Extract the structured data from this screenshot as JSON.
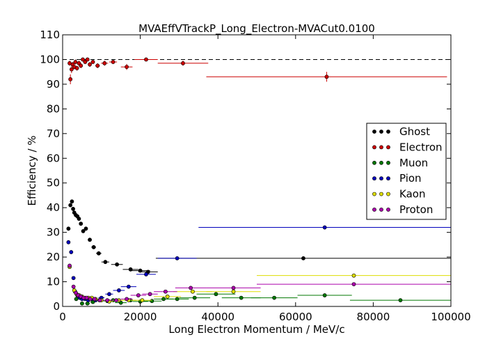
{
  "chart_data": {
    "type": "scatter",
    "title": "MVAEffVTrackP_Long_Electron-MVACut0.0100",
    "xlabel": "Long Electron Momentum / MeV/c",
    "ylabel": "Efficiency / %",
    "xlim": [
      0,
      100000
    ],
    "ylim": [
      0,
      110
    ],
    "xticks": [
      0,
      20000,
      40000,
      60000,
      80000,
      100000
    ],
    "yticks": [
      0,
      10,
      20,
      30,
      40,
      50,
      60,
      70,
      80,
      90,
      100,
      110
    ],
    "grid": false,
    "legend_position": "right",
    "reference_line": 100,
    "series": [
      {
        "name": "Ghost",
        "color": "#000000",
        "points": [
          {
            "x": 1500,
            "y": 31.5,
            "xerr": 500,
            "yerr": 0.8
          },
          {
            "x": 2000,
            "y": 41,
            "xerr": 300,
            "yerr": 0.8
          },
          {
            "x": 2400,
            "y": 42.5,
            "xerr": 200,
            "yerr": 0.8
          },
          {
            "x": 2700,
            "y": 39.5,
            "xerr": 200,
            "yerr": 0.8
          },
          {
            "x": 3000,
            "y": 38,
            "xerr": 200,
            "yerr": 0.8
          },
          {
            "x": 3400,
            "y": 37,
            "xerr": 200,
            "yerr": 0.8
          },
          {
            "x": 3800,
            "y": 36.5,
            "xerr": 200,
            "yerr": 0.8
          },
          {
            "x": 4200,
            "y": 35.5,
            "xerr": 300,
            "yerr": 0.8
          },
          {
            "x": 4700,
            "y": 33.5,
            "xerr": 300,
            "yerr": 0.8
          },
          {
            "x": 5300,
            "y": 30.5,
            "xerr": 300,
            "yerr": 0.8
          },
          {
            "x": 6000,
            "y": 31.5,
            "xerr": 400,
            "yerr": 0.8
          },
          {
            "x": 7000,
            "y": 27,
            "xerr": 500,
            "yerr": 0.8
          },
          {
            "x": 8000,
            "y": 24,
            "xerr": 600,
            "yerr": 0.8
          },
          {
            "x": 9300,
            "y": 21.5,
            "xerr": 700,
            "yerr": 0.8
          },
          {
            "x": 11000,
            "y": 18,
            "xerr": 1000,
            "yerr": 0.8
          },
          {
            "x": 14000,
            "y": 17,
            "xerr": 1500,
            "yerr": 0.8
          },
          {
            "x": 17500,
            "y": 15,
            "xerr": 2000,
            "yerr": 0.8
          },
          {
            "x": 20000,
            "y": 14.5,
            "xerr": 2500,
            "yerr": 0.8
          },
          {
            "x": 22000,
            "y": 14,
            "xerr": 2500,
            "yerr": 0.8
          },
          {
            "x": 62000,
            "y": 19.5,
            "xerr": 38000,
            "yerr": 0.4
          }
        ]
      },
      {
        "name": "Electron",
        "color": "#cc0000",
        "points": [
          {
            "x": 1800,
            "y": 98.5,
            "xerr": 300,
            "yerr": 1.0
          },
          {
            "x": 2000,
            "y": 92,
            "xerr": 200,
            "yerr": 2.0
          },
          {
            "x": 2300,
            "y": 96,
            "xerr": 200,
            "yerr": 1.5
          },
          {
            "x": 2600,
            "y": 98,
            "xerr": 200,
            "yerr": 1.0
          },
          {
            "x": 3000,
            "y": 97,
            "xerr": 200,
            "yerr": 1.0
          },
          {
            "x": 3300,
            "y": 99,
            "xerr": 200,
            "yerr": 1.0
          },
          {
            "x": 3700,
            "y": 96.5,
            "xerr": 200,
            "yerr": 1.0
          },
          {
            "x": 4200,
            "y": 98.5,
            "xerr": 300,
            "yerr": 1.0
          },
          {
            "x": 4700,
            "y": 97.5,
            "xerr": 300,
            "yerr": 1.0
          },
          {
            "x": 5200,
            "y": 100,
            "xerr": 300,
            "yerr": 0.5
          },
          {
            "x": 5800,
            "y": 99,
            "xerr": 300,
            "yerr": 0.8
          },
          {
            "x": 6400,
            "y": 100,
            "xerr": 400,
            "yerr": 0.5
          },
          {
            "x": 7000,
            "y": 98,
            "xerr": 400,
            "yerr": 1.0
          },
          {
            "x": 7800,
            "y": 99,
            "xerr": 500,
            "yerr": 0.8
          },
          {
            "x": 9000,
            "y": 97.5,
            "xerr": 600,
            "yerr": 1.0
          },
          {
            "x": 10800,
            "y": 98.5,
            "xerr": 900,
            "yerr": 1.0
          },
          {
            "x": 13000,
            "y": 99,
            "xerr": 1000,
            "yerr": 0.8
          },
          {
            "x": 16500,
            "y": 97,
            "xerr": 1500,
            "yerr": 1.2
          },
          {
            "x": 21500,
            "y": 100,
            "xerr": 3000,
            "yerr": 0.5
          },
          {
            "x": 31000,
            "y": 98.5,
            "xerr": 6500,
            "yerr": 1.0
          },
          {
            "x": 68000,
            "y": 93,
            "xerr": 31000,
            "yerr": 2.0
          }
        ]
      },
      {
        "name": "Muon",
        "color": "#007700",
        "points": [
          {
            "x": 3500,
            "y": 3,
            "xerr": 300,
            "yerr": 0.5
          },
          {
            "x": 5000,
            "y": 1.2,
            "xerr": 500,
            "yerr": 0.4
          },
          {
            "x": 6400,
            "y": 1.2,
            "xerr": 600,
            "yerr": 0.4
          },
          {
            "x": 7800,
            "y": 1.8,
            "xerr": 700,
            "yerr": 0.4
          },
          {
            "x": 9500,
            "y": 2.5,
            "xerr": 900,
            "yerr": 0.5
          },
          {
            "x": 11500,
            "y": 2.2,
            "xerr": 1000,
            "yerr": 0.5
          },
          {
            "x": 13000,
            "y": 2.5,
            "xerr": 1000,
            "yerr": 0.5
          },
          {
            "x": 15000,
            "y": 1.5,
            "xerr": 1500,
            "yerr": 0.5
          },
          {
            "x": 17500,
            "y": 2.5,
            "xerr": 1500,
            "yerr": 0.5
          },
          {
            "x": 20000,
            "y": 2,
            "xerr": 2000,
            "yerr": 0.5
          },
          {
            "x": 23000,
            "y": 2.2,
            "xerr": 2500,
            "yerr": 0.5
          },
          {
            "x": 26000,
            "y": 3,
            "xerr": 2500,
            "yerr": 0.5
          },
          {
            "x": 29500,
            "y": 3,
            "xerr": 3000,
            "yerr": 0.5
          },
          {
            "x": 34000,
            "y": 3.5,
            "xerr": 4000,
            "yerr": 0.5
          },
          {
            "x": 39500,
            "y": 5,
            "xerr": 5000,
            "yerr": 0.5
          },
          {
            "x": 46000,
            "y": 3.5,
            "xerr": 5000,
            "yerr": 0.5
          },
          {
            "x": 54500,
            "y": 3.5,
            "xerr": 6000,
            "yerr": 0.5
          },
          {
            "x": 67500,
            "y": 4.5,
            "xerr": 7000,
            "yerr": 0.5
          },
          {
            "x": 87000,
            "y": 2.5,
            "xerr": 13000,
            "yerr": 0.5
          }
        ]
      },
      {
        "name": "Pion",
        "color": "#0000bb",
        "points": [
          {
            "x": 1500,
            "y": 26,
            "xerr": 300,
            "yerr": 0.8
          },
          {
            "x": 2200,
            "y": 22,
            "xerr": 300,
            "yerr": 0.8
          },
          {
            "x": 2800,
            "y": 11.5,
            "xerr": 300,
            "yerr": 0.6
          },
          {
            "x": 3200,
            "y": 6,
            "xerr": 300,
            "yerr": 0.5
          },
          {
            "x": 3800,
            "y": 4.5,
            "xerr": 300,
            "yerr": 0.5
          },
          {
            "x": 4400,
            "y": 3.5,
            "xerr": 300,
            "yerr": 0.5
          },
          {
            "x": 5000,
            "y": 3,
            "xerr": 400,
            "yerr": 0.4
          },
          {
            "x": 5800,
            "y": 3,
            "xerr": 400,
            "yerr": 0.4
          },
          {
            "x": 6600,
            "y": 2.5,
            "xerr": 500,
            "yerr": 0.4
          },
          {
            "x": 7500,
            "y": 3,
            "xerr": 500,
            "yerr": 0.4
          },
          {
            "x": 8500,
            "y": 2.5,
            "xerr": 600,
            "yerr": 0.4
          },
          {
            "x": 10000,
            "y": 3.5,
            "xerr": 800,
            "yerr": 0.5
          },
          {
            "x": 12000,
            "y": 5,
            "xerr": 1000,
            "yerr": 0.6
          },
          {
            "x": 14500,
            "y": 6.5,
            "xerr": 1500,
            "yerr": 0.6
          },
          {
            "x": 17000,
            "y": 8,
            "xerr": 2000,
            "yerr": 0.6
          },
          {
            "x": 21500,
            "y": 13,
            "xerr": 2500,
            "yerr": 0.8
          },
          {
            "x": 29500,
            "y": 19.5,
            "xerr": 5000,
            "yerr": 0.6
          },
          {
            "x": 67500,
            "y": 32,
            "xerr": 32500,
            "yerr": 0.5
          }
        ]
      },
      {
        "name": "Kaon",
        "color": "#dddd00",
        "points": [
          {
            "x": 1800,
            "y": 16,
            "xerr": 300,
            "yerr": 0.8
          },
          {
            "x": 3000,
            "y": 6.5,
            "xerr": 300,
            "yerr": 0.6
          },
          {
            "x": 3600,
            "y": 5,
            "xerr": 300,
            "yerr": 0.5
          },
          {
            "x": 4300,
            "y": 4.5,
            "xerr": 300,
            "yerr": 0.5
          },
          {
            "x": 5000,
            "y": 4,
            "xerr": 400,
            "yerr": 0.4
          },
          {
            "x": 5800,
            "y": 3.5,
            "xerr": 400,
            "yerr": 0.4
          },
          {
            "x": 6600,
            "y": 3.5,
            "xerr": 500,
            "yerr": 0.4
          },
          {
            "x": 7500,
            "y": 3.5,
            "xerr": 500,
            "yerr": 0.4
          },
          {
            "x": 8500,
            "y": 3,
            "xerr": 600,
            "yerr": 0.4
          },
          {
            "x": 10000,
            "y": 2.5,
            "xerr": 800,
            "yerr": 0.4
          },
          {
            "x": 12000,
            "y": 2,
            "xerr": 1000,
            "yerr": 0.4
          },
          {
            "x": 14500,
            "y": 2.5,
            "xerr": 1500,
            "yerr": 0.4
          },
          {
            "x": 17000,
            "y": 2.5,
            "xerr": 2000,
            "yerr": 0.4
          },
          {
            "x": 20500,
            "y": 2.5,
            "xerr": 2500,
            "yerr": 0.4
          },
          {
            "x": 27000,
            "y": 4,
            "xerr": 3500,
            "yerr": 0.4
          },
          {
            "x": 33500,
            "y": 6,
            "xerr": 5000,
            "yerr": 0.4
          },
          {
            "x": 44000,
            "y": 6,
            "xerr": 7000,
            "yerr": 0.4
          },
          {
            "x": 75000,
            "y": 12.5,
            "xerr": 25000,
            "yerr": 0.4
          }
        ]
      },
      {
        "name": "Proton",
        "color": "#aa00aa",
        "points": [
          {
            "x": 1800,
            "y": 16.5,
            "xerr": 300,
            "yerr": 0.8
          },
          {
            "x": 2800,
            "y": 8,
            "xerr": 300,
            "yerr": 0.6
          },
          {
            "x": 3400,
            "y": 5.5,
            "xerr": 300,
            "yerr": 0.5
          },
          {
            "x": 4000,
            "y": 4.5,
            "xerr": 300,
            "yerr": 0.5
          },
          {
            "x": 4700,
            "y": 4,
            "xerr": 300,
            "yerr": 0.4
          },
          {
            "x": 5400,
            "y": 3.5,
            "xerr": 400,
            "yerr": 0.4
          },
          {
            "x": 6200,
            "y": 3.5,
            "xerr": 400,
            "yerr": 0.4
          },
          {
            "x": 7100,
            "y": 3,
            "xerr": 500,
            "yerr": 0.4
          },
          {
            "x": 8200,
            "y": 3,
            "xerr": 600,
            "yerr": 0.4
          },
          {
            "x": 9600,
            "y": 2.5,
            "xerr": 700,
            "yerr": 0.4
          },
          {
            "x": 11500,
            "y": 2.5,
            "xerr": 1000,
            "yerr": 0.4
          },
          {
            "x": 13800,
            "y": 2.5,
            "xerr": 1200,
            "yerr": 0.4
          },
          {
            "x": 16500,
            "y": 3,
            "xerr": 1500,
            "yerr": 0.4
          },
          {
            "x": 19500,
            "y": 4.5,
            "xerr": 2000,
            "yerr": 0.5
          },
          {
            "x": 22500,
            "y": 5,
            "xerr": 2000,
            "yerr": 0.5
          },
          {
            "x": 26500,
            "y": 6,
            "xerr": 3000,
            "yerr": 0.5
          },
          {
            "x": 33000,
            "y": 7.5,
            "xerr": 4000,
            "yerr": 0.5
          },
          {
            "x": 44000,
            "y": 7.5,
            "xerr": 7000,
            "yerr": 0.5
          },
          {
            "x": 75000,
            "y": 9,
            "xerr": 25000,
            "yerr": 0.5
          }
        ]
      }
    ]
  }
}
